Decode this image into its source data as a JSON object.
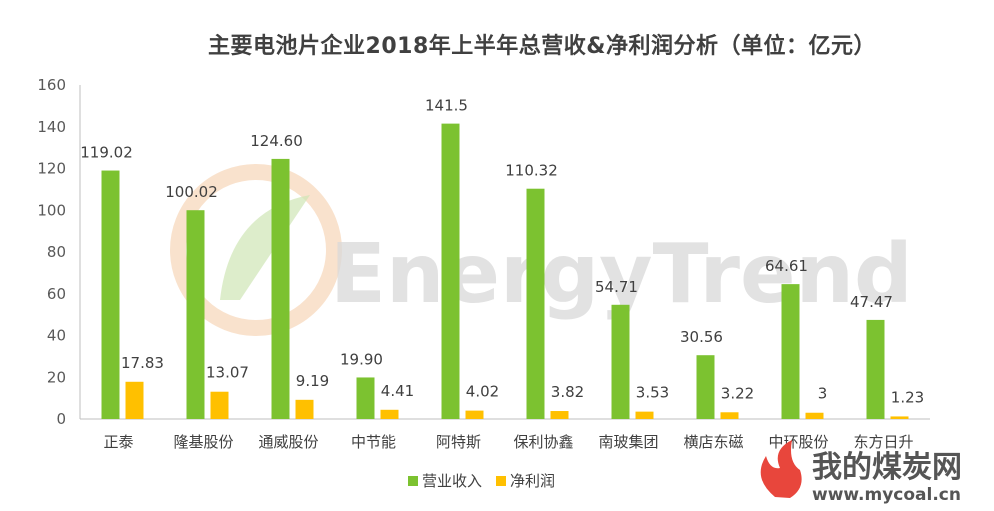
{
  "chart_data": {
    "type": "bar",
    "title": "主要电池片企业2018年上半年总营收&净利润分析（单位：亿元）",
    "categories": [
      "正泰",
      "隆基股份",
      "通威股份",
      "中节能",
      "阿特斯",
      "保利协鑫",
      "南玻集团",
      "横店东磁",
      "中环股份",
      "东方日升"
    ],
    "series": [
      {
        "name": "营业收入",
        "color": "#7cc230",
        "values": [
          119.02,
          100.02,
          124.6,
          19.9,
          141.5,
          110.32,
          54.71,
          30.56,
          64.61,
          47.47
        ],
        "labels": [
          "119.02",
          "100.02",
          "124.60",
          "19.90",
          "141.5",
          "110.32",
          "54.71",
          "30.56",
          "64.61",
          "47.47"
        ]
      },
      {
        "name": "净利润",
        "color": "#ffc000",
        "values": [
          17.83,
          13.07,
          9.19,
          4.41,
          4.02,
          3.82,
          3.53,
          3.22,
          3,
          1.23
        ],
        "labels": [
          "17.83",
          "13.07",
          "9.19",
          "4.41",
          "4.02",
          "3.82",
          "3.53",
          "3.22",
          "3",
          "1.23"
        ]
      }
    ],
    "ylim": [
      0,
      160
    ],
    "yticks": [
      "0",
      "20",
      "40",
      "60",
      "80",
      "100",
      "120",
      "140",
      "160"
    ],
    "grid": false,
    "legend": "bottom"
  },
  "watermark": {
    "text": "EnergyTrend"
  },
  "site_logo": {
    "name_cn": "我的煤炭网",
    "url": "www.mycoal.cn",
    "icon": "flame-icon"
  }
}
